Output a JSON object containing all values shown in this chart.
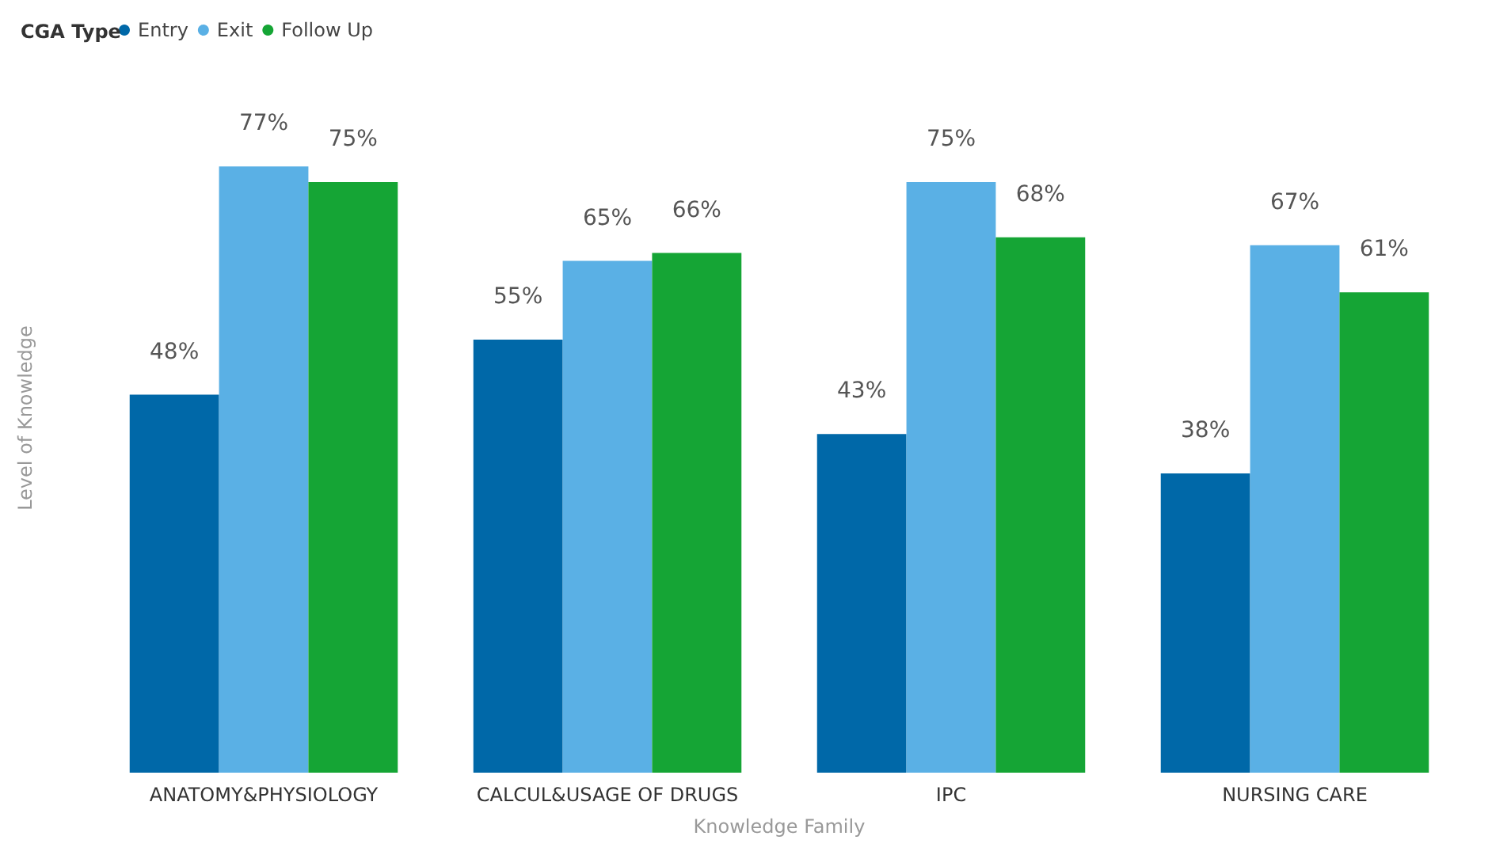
{
  "chart_data": {
    "type": "bar",
    "xlabel": "Knowledge Family",
    "ylabel": "Level of Knowledge",
    "legend_title": "CGA Type",
    "legend": "top left",
    "grid": false,
    "tick_labels": "x",
    "categories": [
      "ANATOMY&PHYSIOLOGY",
      "CALCUL&USAGE OF DRUGS",
      "IPC",
      "NURSING CARE"
    ],
    "series": [
      {
        "name": "Entry",
        "color": "#0068a8",
        "values": [
          48,
          55,
          43,
          38
        ],
        "value_labels": [
          "48%",
          "55%",
          "43%",
          "38%"
        ]
      },
      {
        "name": "Exit",
        "color": "#5ab0e5",
        "values": [
          77,
          65,
          75,
          67
        ],
        "value_labels": [
          "77%",
          "65%",
          "75%",
          "67%"
        ]
      },
      {
        "name": "Follow Up",
        "color": "#15a535",
        "values": [
          75,
          66,
          68,
          61
        ],
        "value_labels": [
          "75%",
          "66%",
          "68%",
          "61%"
        ]
      }
    ]
  }
}
